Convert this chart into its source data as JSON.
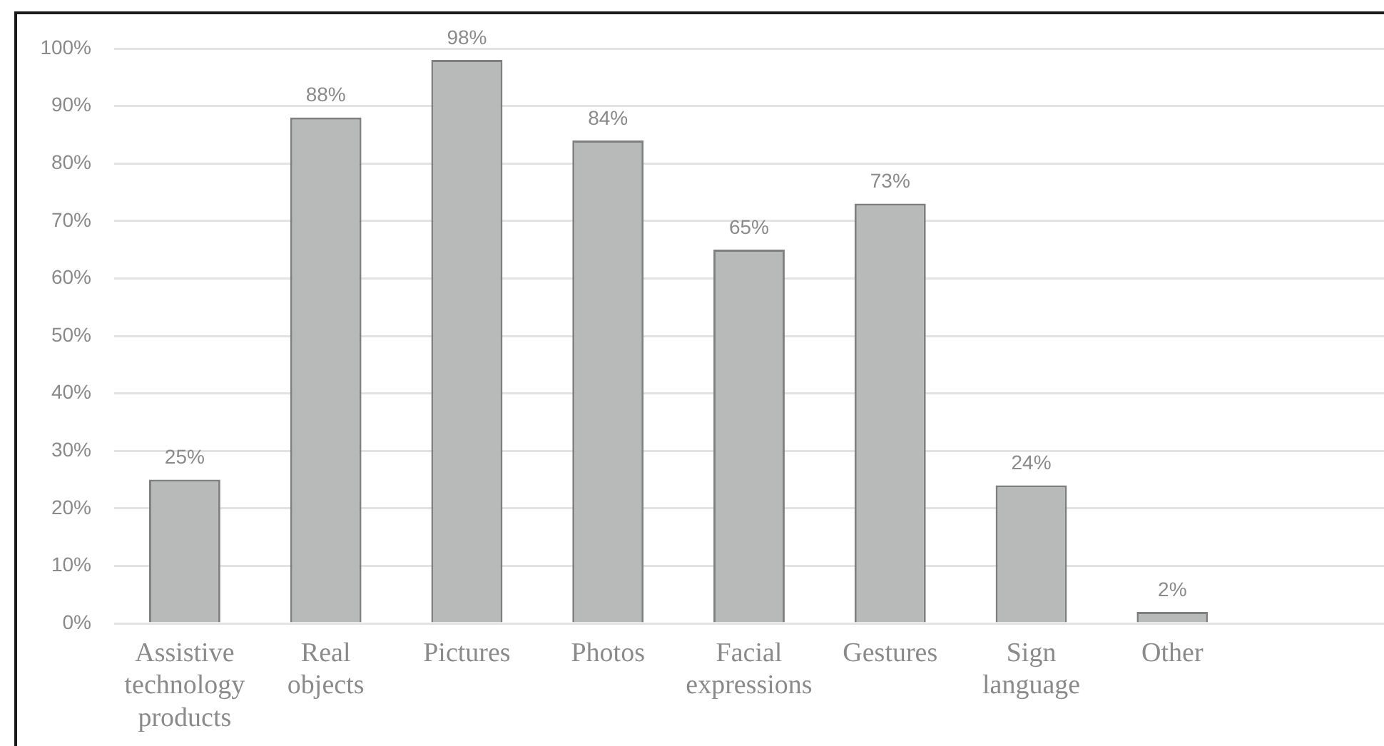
{
  "chart_data": {
    "type": "bar",
    "categories": [
      "Assistive technology products",
      "Real objects",
      "Pictures",
      "Photos",
      "Facial expressions",
      "Gestures",
      "Sign language",
      "Other",
      null
    ],
    "values": [
      25,
      88,
      98,
      84,
      65,
      73,
      24,
      2,
      null
    ],
    "value_labels": [
      "25%",
      "88%",
      "98%",
      "84%",
      "65%",
      "73%",
      "24%",
      "2%",
      null
    ],
    "color": "#b8b9b9",
    "ylim": [
      0,
      100
    ],
    "yticks": [
      {
        "value": 0,
        "label": "0%"
      },
      {
        "value": 10,
        "label": "10%"
      },
      {
        "value": 20,
        "label": "20%"
      },
      {
        "value": 30,
        "label": "30%"
      },
      {
        "value": 40,
        "label": "40%"
      },
      {
        "value": 50,
        "label": "50%"
      },
      {
        "value": 60,
        "label": "60%"
      },
      {
        "value": 70,
        "label": "70%"
      },
      {
        "value": 80,
        "label": "80%"
      },
      {
        "value": 90,
        "label": "90%"
      },
      {
        "value": 100,
        "label": "100%"
      }
    ],
    "grid": "y"
  }
}
